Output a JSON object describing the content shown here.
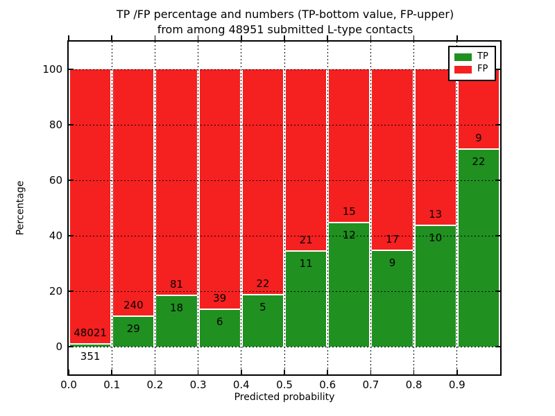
{
  "title": {
    "line1": "TP /FP percentage and numbers (TP-bottom value, FP-upper)",
    "line2": "from among 48951 submitted L-type contacts"
  },
  "chart_data": {
    "type": "bar",
    "stacked": true,
    "normalized_to_percent": true,
    "title": "TP /FP percentage and numbers (TP-bottom value, FP-upper)\nfrom among 48951 submitted L-type contacts",
    "total_submitted_contacts": 48951,
    "xlabel": "Predicted probability",
    "ylabel": "Percentage",
    "xlim": [
      0.0,
      1.0
    ],
    "ylim": [
      -10,
      110
    ],
    "grid": true,
    "xticks": [
      "0.0",
      "0.1",
      "0.2",
      "0.3",
      "0.4",
      "0.5",
      "0.6",
      "0.7",
      "0.8",
      "0.9"
    ],
    "yticks": [
      0,
      20,
      40,
      60,
      80,
      100
    ],
    "categories": [
      "0.0-0.1",
      "0.1-0.2",
      "0.2-0.3",
      "0.3-0.4",
      "0.4-0.5",
      "0.5-0.6",
      "0.6-0.7",
      "0.7-0.8",
      "0.8-0.9",
      "0.9-1.0"
    ],
    "series": [
      {
        "name": "TP",
        "color": "#209020",
        "counts": [
          351,
          29,
          18,
          6,
          5,
          11,
          12,
          9,
          10,
          22
        ]
      },
      {
        "name": "FP",
        "color": "#f52020",
        "counts": [
          48021,
          240,
          81,
          39,
          22,
          21,
          15,
          17,
          13,
          9
        ]
      }
    ],
    "tp_percent": [
      0.73,
      10.78,
      18.18,
      13.33,
      18.52,
      34.38,
      44.44,
      34.62,
      43.48,
      70.97
    ],
    "legend": {
      "position": "upper right",
      "entries": [
        {
          "label": "TP",
          "color": "#209020"
        },
        {
          "label": "FP",
          "color": "#f52020"
        }
      ]
    }
  }
}
